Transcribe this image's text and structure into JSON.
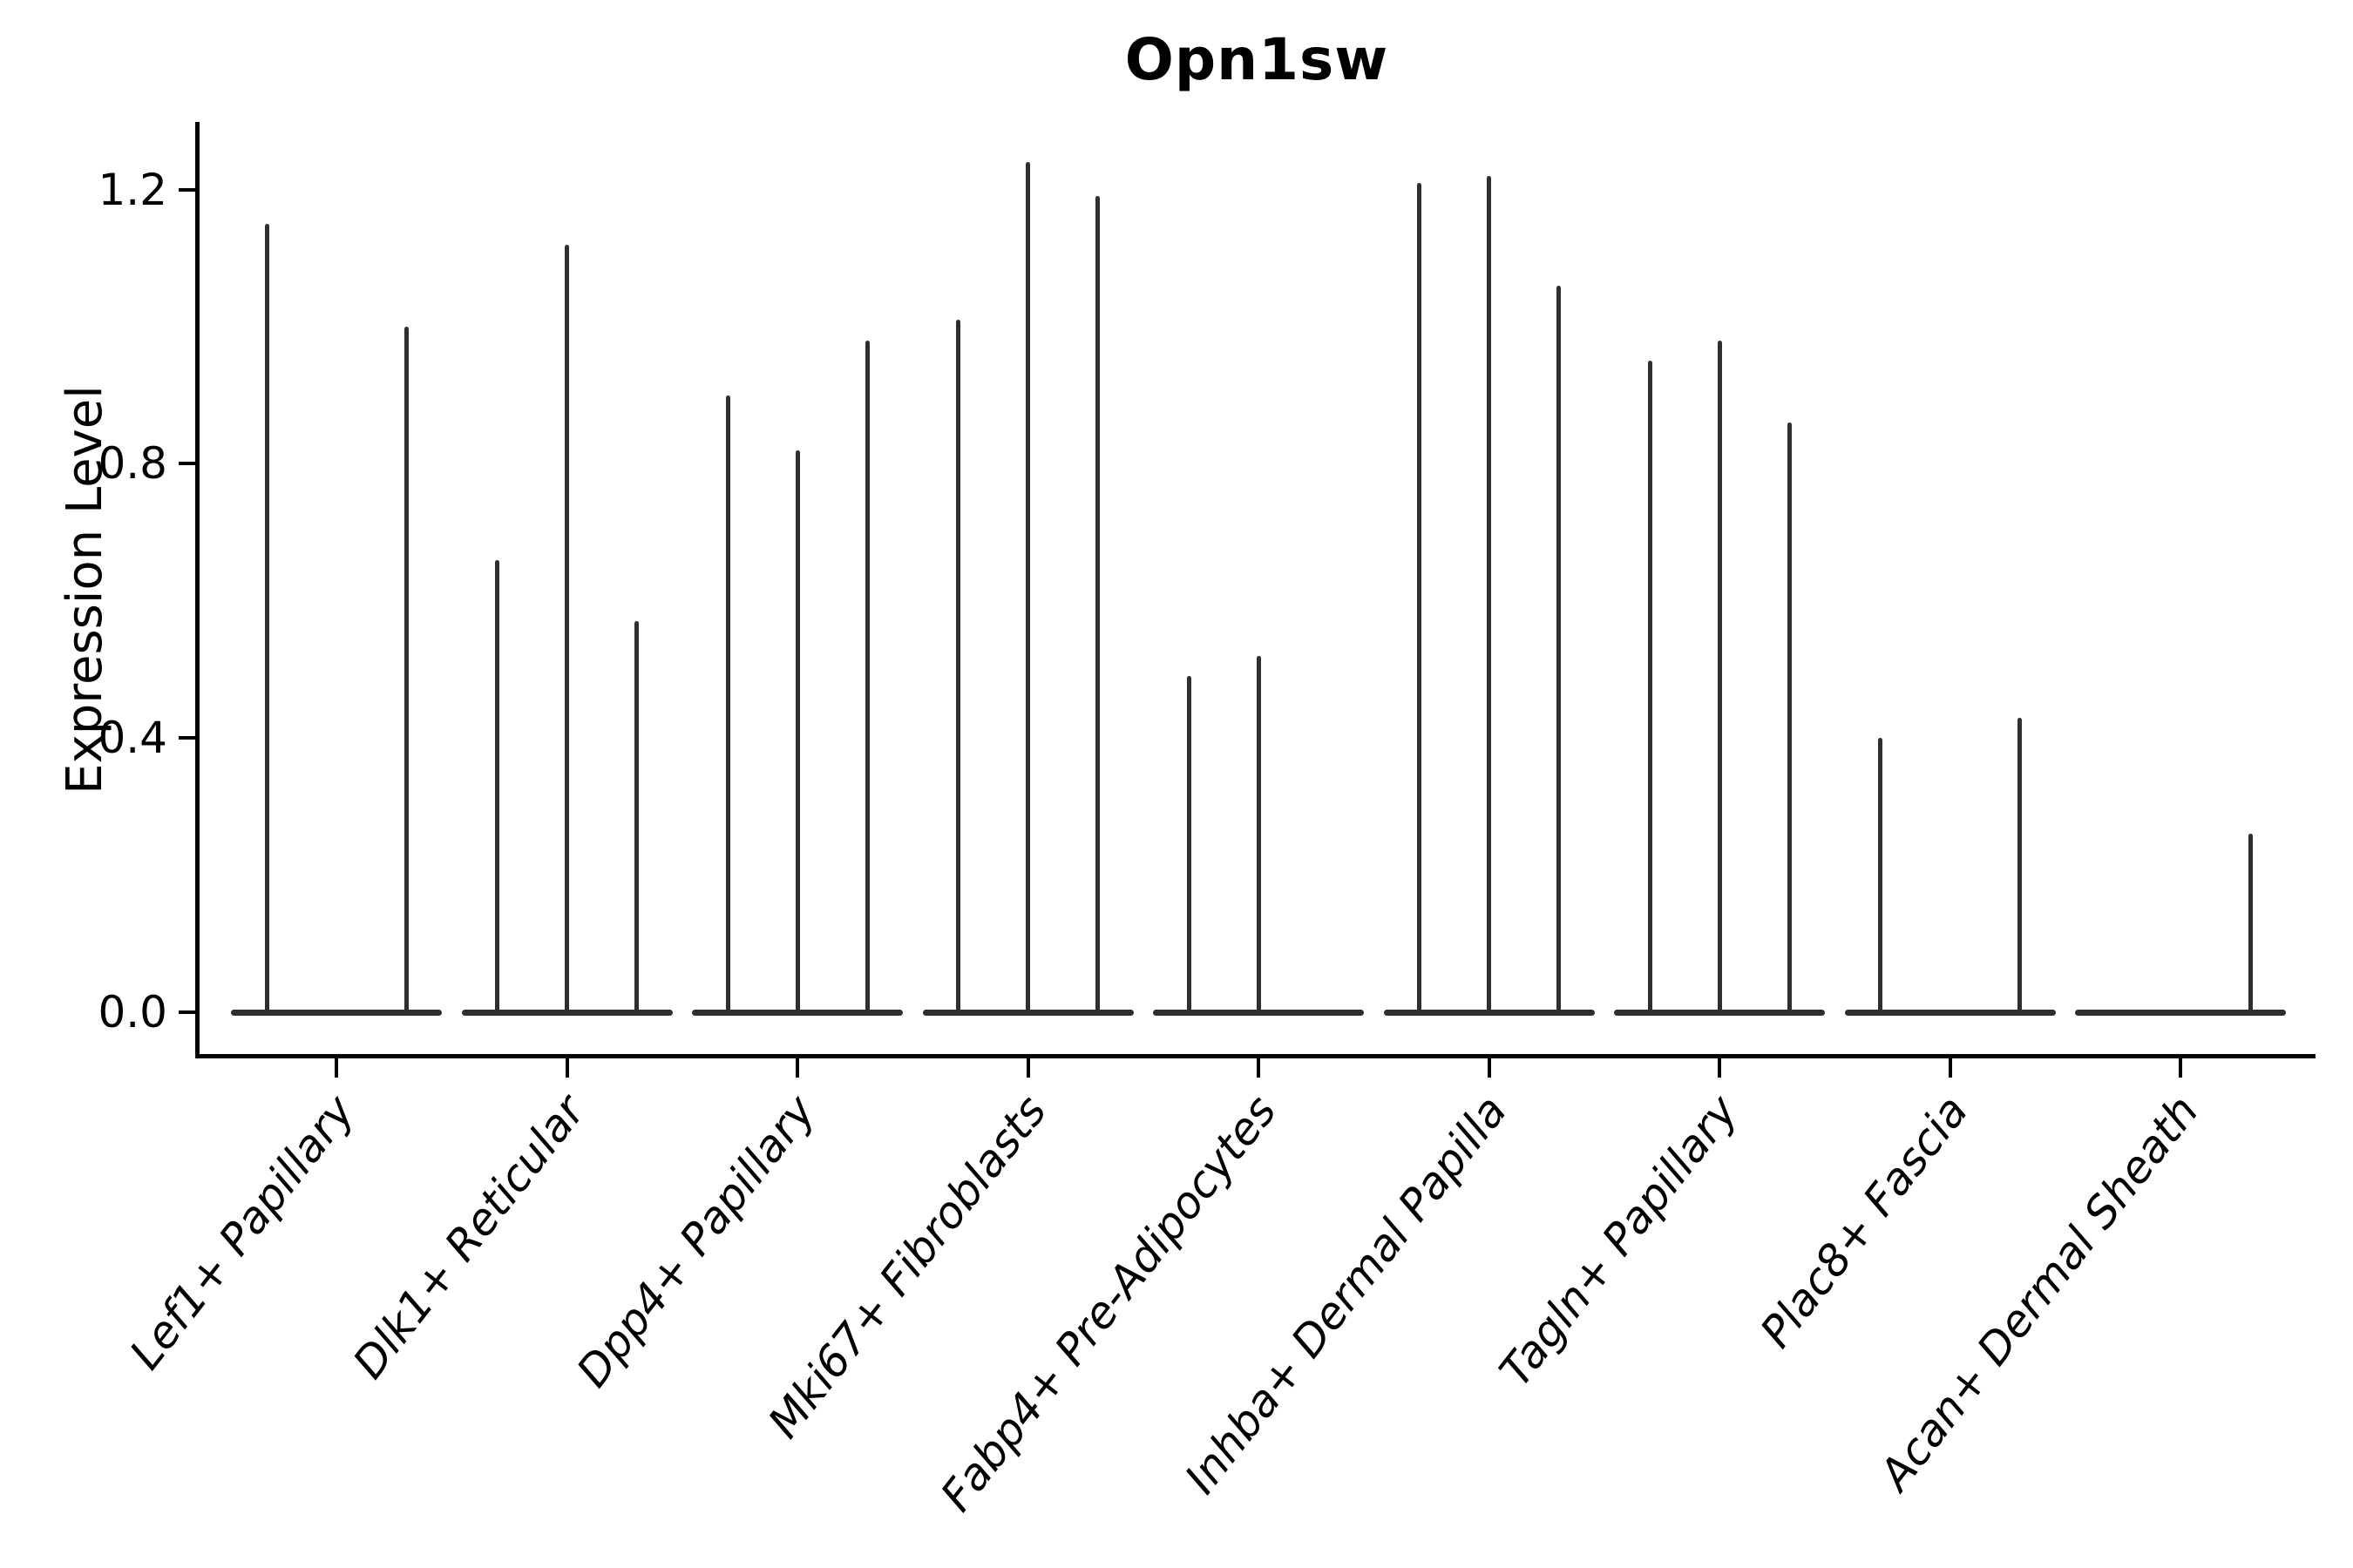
{
  "title": "Opn1sw",
  "ylabel": "Expression Level",
  "chart_data": {
    "type": "violin",
    "title": "Opn1sw",
    "xlabel": "",
    "ylabel": "Expression Level",
    "ylim": [
      0,
      1.3
    ],
    "yticks": [
      0.0,
      0.4,
      0.8,
      1.2
    ],
    "grid": false,
    "legend": "none",
    "violins_per_group": 3,
    "description": "Needle-thin violins (max expression spikes) with wide flat bases at 0; three violin slots per cell-type group",
    "categories": [
      "Lef1+ Papillary",
      "Dlk1+ Reticular",
      "Dpp4+ Papillary",
      "Mki67+ Fibroblasts",
      "Fabp4+ Pre-Adipocytes",
      "Inhba+ Dermal Papilla",
      "Tagln+ Papillary",
      "Plac8+ Fascia",
      "Acan+ Dermal Sheath"
    ],
    "series": [
      {
        "name": "Lef1+ Papillary",
        "spike_maxima": [
          1.15,
          0,
          1.0
        ]
      },
      {
        "name": "Dlk1+ Reticular",
        "spike_maxima": [
          0.66,
          1.12,
          0.57
        ]
      },
      {
        "name": "Dpp4+ Papillary",
        "spike_maxima": [
          0.9,
          0.82,
          0.98
        ]
      },
      {
        "name": "Mki67+ Fibroblasts",
        "spike_maxima": [
          1.01,
          1.24,
          1.19
        ]
      },
      {
        "name": "Fabp4+ Pre-Adipocytes",
        "spike_maxima": [
          0.49,
          0.52,
          0
        ]
      },
      {
        "name": "Inhba+ Dermal Papilla",
        "spike_maxima": [
          1.21,
          1.22,
          1.06
        ]
      },
      {
        "name": "Tagln+ Papillary",
        "spike_maxima": [
          0.95,
          0.98,
          0.86
        ]
      },
      {
        "name": "Plac8+ Fascia",
        "spike_maxima": [
          0.4,
          0,
          0.43
        ]
      },
      {
        "name": "Acan+ Dermal Sheath",
        "spike_maxima": [
          0,
          0,
          0.26
        ]
      }
    ],
    "violin_color": "#2f2f2f",
    "axis_color": "#000000"
  }
}
